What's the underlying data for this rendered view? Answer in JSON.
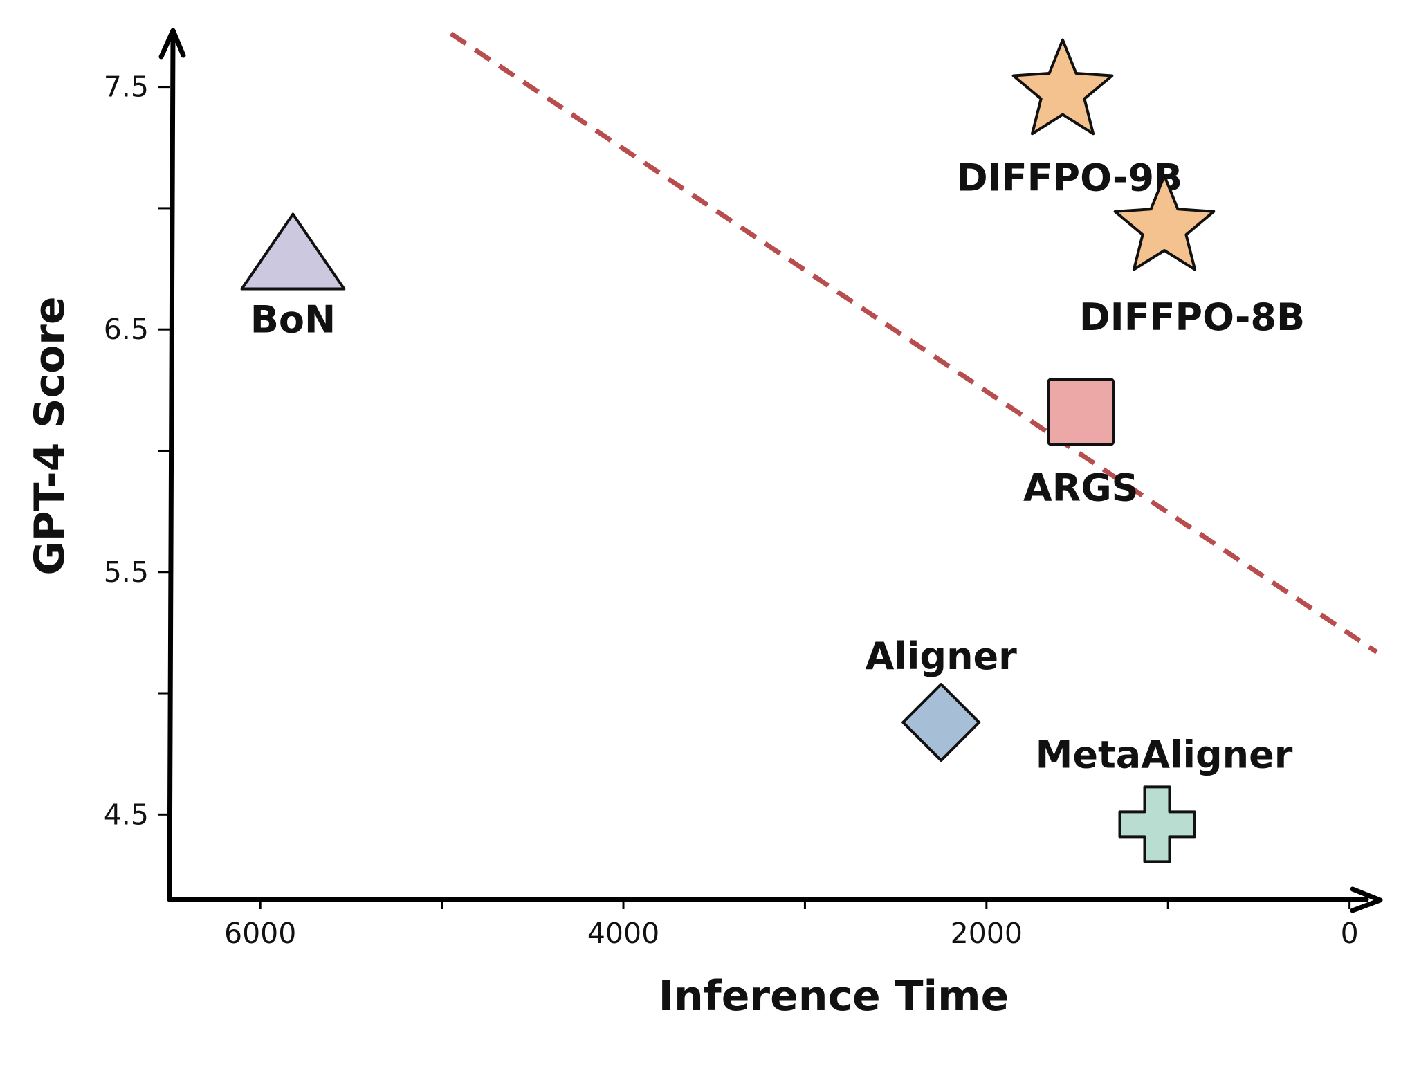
{
  "chart_data": {
    "type": "scatter",
    "xlabel": "Inference Time",
    "ylabel": "GPT-4 Score",
    "xlim": [
      6500,
      -150
    ],
    "ylim": [
      4.15,
      7.75
    ],
    "x_reversed": true,
    "x_ticks": [
      {
        "value": 6000,
        "label": "6000"
      },
      {
        "value": 5000,
        "label": ""
      },
      {
        "value": 4000,
        "label": "4000"
      },
      {
        "value": 3000,
        "label": ""
      },
      {
        "value": 2000,
        "label": "2000"
      },
      {
        "value": 1000,
        "label": ""
      },
      {
        "value": 0,
        "label": "0"
      }
    ],
    "y_ticks": [
      {
        "value": 7.5,
        "label": "7.5"
      },
      {
        "value": 7.0,
        "label": ""
      },
      {
        "value": 6.5,
        "label": "6.5"
      },
      {
        "value": 6.0,
        "label": ""
      },
      {
        "value": 5.5,
        "label": "5.5"
      },
      {
        "value": 5.0,
        "label": ""
      },
      {
        "value": 4.5,
        "label": "4.5"
      }
    ],
    "grid": false,
    "points": [
      {
        "name": "BoN",
        "x": 5820,
        "y": 6.81,
        "marker": "triangle",
        "color": "#cbc8e0"
      },
      {
        "name": "DIFFPO-9B",
        "x": 1580,
        "y": 7.48,
        "marker": "star",
        "color": "#f3c28e"
      },
      {
        "name": "DIFFPO-8B",
        "x": 1020,
        "y": 6.92,
        "marker": "star",
        "color": "#f3c28e"
      },
      {
        "name": "ARGS",
        "x": 1480,
        "y": 6.16,
        "marker": "square",
        "color": "#eca8a6"
      },
      {
        "name": "Aligner",
        "x": 2250,
        "y": 4.88,
        "marker": "diamond",
        "color": "#a6bfd6"
      },
      {
        "name": "MetaAligner",
        "x": 1060,
        "y": 4.46,
        "marker": "plus",
        "color": "#b9ddd1"
      }
    ],
    "trend_line": {
      "x": [
        4950,
        -150
      ],
      "y": [
        7.72,
        5.17
      ],
      "color": "#b94d4d",
      "style": "dashed"
    }
  }
}
